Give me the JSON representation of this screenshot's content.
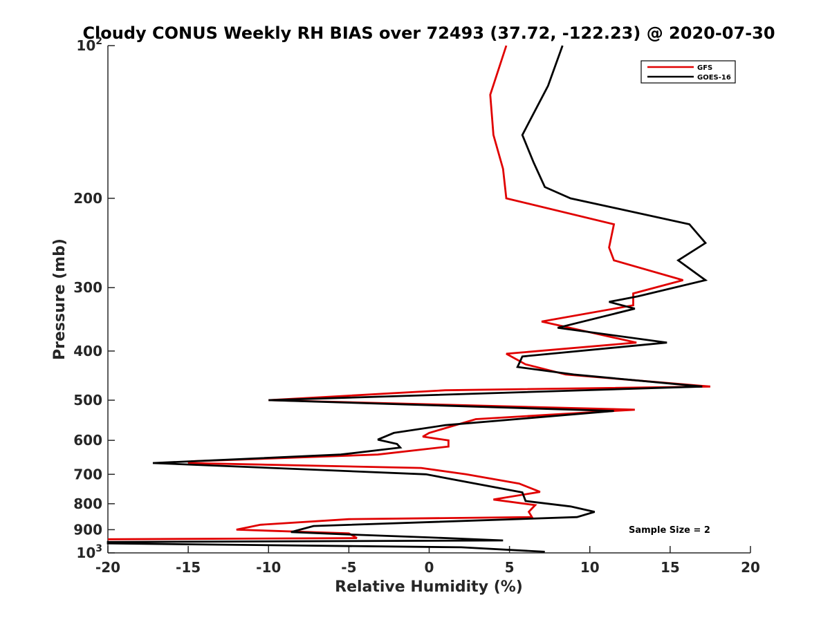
{
  "chart_data": {
    "type": "line",
    "title": "Cloudy CONUS Weekly RH BIAS over 72493 (37.72, -122.23) @ 2020-07-30",
    "xlabel": "Relative Humidity (%)",
    "ylabel": "Pressure (mb)",
    "xlim": [
      -20,
      20
    ],
    "ylim": [
      100,
      1000
    ],
    "y_scale": "log",
    "y_reversed": true,
    "grid": false,
    "legend_position": "top-right",
    "x_ticks": [
      {
        "value": -20,
        "label": "-20"
      },
      {
        "value": -15,
        "label": "-15"
      },
      {
        "value": -10,
        "label": "-10"
      },
      {
        "value": -5,
        "label": "-5"
      },
      {
        "value": 0,
        "label": "0"
      },
      {
        "value": 5,
        "label": "5"
      },
      {
        "value": 10,
        "label": "10"
      },
      {
        "value": 15,
        "label": "15"
      },
      {
        "value": 20,
        "label": "20"
      }
    ],
    "y_ticks": [
      {
        "value": 100,
        "base": "10",
        "exp": "2"
      },
      {
        "value": 200,
        "base": "200",
        "exp": ""
      },
      {
        "value": 300,
        "base": "300",
        "exp": ""
      },
      {
        "value": 400,
        "base": "400",
        "exp": ""
      },
      {
        "value": 500,
        "base": "500",
        "exp": ""
      },
      {
        "value": 600,
        "base": "600",
        "exp": ""
      },
      {
        "value": 700,
        "base": "700",
        "exp": ""
      },
      {
        "value": 800,
        "base": "800",
        "exp": ""
      },
      {
        "value": 900,
        "base": "900",
        "exp": ""
      },
      {
        "value": 1000,
        "base": "10",
        "exp": "3"
      }
    ],
    "series": [
      {
        "name": "GFS",
        "color": "#e00000",
        "points": [
          [
            4.8,
            100
          ],
          [
            3.8,
            125
          ],
          [
            4.0,
            150
          ],
          [
            4.6,
            175
          ],
          [
            4.8,
            200
          ],
          [
            11.5,
            225
          ],
          [
            11.2,
            250
          ],
          [
            11.5,
            265
          ],
          [
            15.8,
            290
          ],
          [
            12.7,
            308
          ],
          [
            12.7,
            325
          ],
          [
            7.0,
            350
          ],
          [
            12.9,
            385
          ],
          [
            4.8,
            405
          ],
          [
            6.0,
            425
          ],
          [
            8.5,
            445
          ],
          [
            17.5,
            470
          ],
          [
            1.0,
            478
          ],
          [
            -10.0,
            500
          ],
          [
            12.8,
            522
          ],
          [
            2.9,
            545
          ],
          [
            0.0,
            580
          ],
          [
            -0.4,
            590
          ],
          [
            1.2,
            600
          ],
          [
            1.2,
            617
          ],
          [
            -3.2,
            640
          ],
          [
            -14.8,
            660
          ],
          [
            -15.0,
            665
          ],
          [
            -0.5,
            680
          ],
          [
            2.3,
            700
          ],
          [
            5.6,
            730
          ],
          [
            6.9,
            758
          ],
          [
            4.0,
            785
          ],
          [
            6.6,
            805
          ],
          [
            6.2,
            830
          ],
          [
            6.4,
            850
          ],
          [
            -5.0,
            858
          ],
          [
            -10.5,
            880
          ],
          [
            -12.0,
            900
          ],
          [
            -5.0,
            915
          ],
          [
            -4.5,
            935
          ],
          [
            -20.0,
            940
          ]
        ]
      },
      {
        "name": "GOES-16",
        "color": "#000000",
        "points": [
          [
            8.3,
            100
          ],
          [
            7.4,
            120
          ],
          [
            5.8,
            150
          ],
          [
            6.5,
            170
          ],
          [
            7.2,
            190
          ],
          [
            8.8,
            200
          ],
          [
            16.2,
            225
          ],
          [
            17.2,
            245
          ],
          [
            15.5,
            265
          ],
          [
            17.2,
            290
          ],
          [
            13.0,
            312
          ],
          [
            11.2,
            320
          ],
          [
            12.8,
            330
          ],
          [
            8.0,
            360
          ],
          [
            14.8,
            385
          ],
          [
            5.8,
            410
          ],
          [
            5.5,
            430
          ],
          [
            9.0,
            445
          ],
          [
            17.0,
            470
          ],
          [
            -10.0,
            500
          ],
          [
            11.5,
            525
          ],
          [
            1.0,
            560
          ],
          [
            -2.2,
            580
          ],
          [
            -3.2,
            598
          ],
          [
            -2.0,
            610
          ],
          [
            -1.8,
            620
          ],
          [
            -5.5,
            640
          ],
          [
            -17.2,
            665
          ],
          [
            -0.2,
            700
          ],
          [
            5.8,
            760
          ],
          [
            6.0,
            790
          ],
          [
            8.8,
            810
          ],
          [
            10.3,
            830
          ],
          [
            9.2,
            850
          ],
          [
            -7.2,
            885
          ],
          [
            -8.6,
            910
          ],
          [
            -5.0,
            920
          ],
          [
            0.0,
            932
          ],
          [
            4.6,
            945
          ],
          [
            -20.0,
            952
          ],
          [
            -20.0,
            958
          ],
          [
            2.0,
            975
          ],
          [
            7.2,
            995
          ]
        ]
      }
    ],
    "annotation": "Sample Size = 2"
  }
}
